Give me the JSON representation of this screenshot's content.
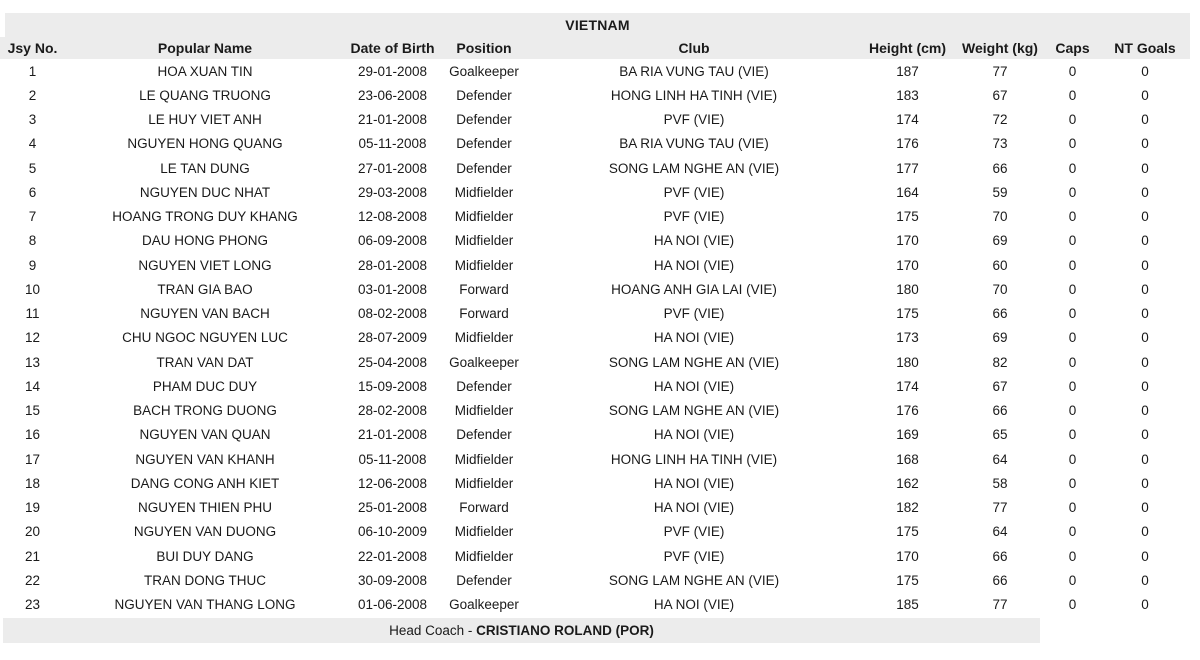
{
  "title": "VIETNAM",
  "table": {
    "columns": [
      "Jsy No.",
      "Popular Name",
      "Date of Birth",
      "Position",
      "Club",
      "Height (cm)",
      "Weight (kg)",
      "Caps",
      "NT Goals"
    ],
    "rows": [
      [
        "1",
        "HOA XUAN TIN",
        "29-01-2008",
        "Goalkeeper",
        "BA RIA VUNG TAU (VIE)",
        "187",
        "77",
        "0",
        "0"
      ],
      [
        "2",
        "LE QUANG TRUONG",
        "23-06-2008",
        "Defender",
        "HONG LINH HA TINH (VIE)",
        "183",
        "67",
        "0",
        "0"
      ],
      [
        "3",
        "LE HUY VIET ANH",
        "21-01-2008",
        "Defender",
        "PVF (VIE)",
        "174",
        "72",
        "0",
        "0"
      ],
      [
        "4",
        "NGUYEN HONG QUANG",
        "05-11-2008",
        "Defender",
        "BA RIA VUNG TAU (VIE)",
        "176",
        "73",
        "0",
        "0"
      ],
      [
        "5",
        "LE TAN DUNG",
        "27-01-2008",
        "Defender",
        "SONG LAM NGHE AN (VIE)",
        "177",
        "66",
        "0",
        "0"
      ],
      [
        "6",
        "NGUYEN DUC NHAT",
        "29-03-2008",
        "Midfielder",
        "PVF (VIE)",
        "164",
        "59",
        "0",
        "0"
      ],
      [
        "7",
        "HOANG TRONG DUY KHANG",
        "12-08-2008",
        "Midfielder",
        "PVF (VIE)",
        "175",
        "70",
        "0",
        "0"
      ],
      [
        "8",
        "DAU HONG PHONG",
        "06-09-2008",
        "Midfielder",
        "HA NOI (VIE)",
        "170",
        "69",
        "0",
        "0"
      ],
      [
        "9",
        "NGUYEN VIET LONG",
        "28-01-2008",
        "Midfielder",
        "HA NOI (VIE)",
        "170",
        "60",
        "0",
        "0"
      ],
      [
        "10",
        "TRAN GIA BAO",
        "03-01-2008",
        "Forward",
        "HOANG ANH GIA LAI (VIE)",
        "180",
        "70",
        "0",
        "0"
      ],
      [
        "11",
        "NGUYEN VAN BACH",
        "08-02-2008",
        "Forward",
        "PVF (VIE)",
        "175",
        "66",
        "0",
        "0"
      ],
      [
        "12",
        "CHU NGOC NGUYEN LUC",
        "28-07-2009",
        "Midfielder",
        "HA NOI (VIE)",
        "173",
        "69",
        "0",
        "0"
      ],
      [
        "13",
        "TRAN VAN DAT",
        "25-04-2008",
        "Goalkeeper",
        "SONG LAM NGHE AN (VIE)",
        "180",
        "82",
        "0",
        "0"
      ],
      [
        "14",
        "PHAM DUC DUY",
        "15-09-2008",
        "Defender",
        "HA NOI (VIE)",
        "174",
        "67",
        "0",
        "0"
      ],
      [
        "15",
        "BACH TRONG DUONG",
        "28-02-2008",
        "Midfielder",
        "SONG LAM NGHE AN (VIE)",
        "176",
        "66",
        "0",
        "0"
      ],
      [
        "16",
        "NGUYEN VAN QUAN",
        "21-01-2008",
        "Defender",
        "HA NOI (VIE)",
        "169",
        "65",
        "0",
        "0"
      ],
      [
        "17",
        "NGUYEN VAN KHANH",
        "05-11-2008",
        "Midfielder",
        "HONG LINH HA TINH (VIE)",
        "168",
        "64",
        "0",
        "0"
      ],
      [
        "18",
        "DANG CONG ANH KIET",
        "12-06-2008",
        "Midfielder",
        "HA NOI (VIE)",
        "162",
        "58",
        "0",
        "0"
      ],
      [
        "19",
        "NGUYEN THIEN PHU",
        "25-01-2008",
        "Forward",
        "HA NOI (VIE)",
        "182",
        "77",
        "0",
        "0"
      ],
      [
        "20",
        "NGUYEN VAN DUONG",
        "06-10-2009",
        "Midfielder",
        "PVF (VIE)",
        "175",
        "64",
        "0",
        "0"
      ],
      [
        "21",
        "BUI DUY DANG",
        "22-01-2008",
        "Midfielder",
        "PVF (VIE)",
        "170",
        "66",
        "0",
        "0"
      ],
      [
        "22",
        "TRAN DONG THUC",
        "30-09-2008",
        "Defender",
        "SONG LAM NGHE AN (VIE)",
        "175",
        "66",
        "0",
        "0"
      ],
      [
        "23",
        "NGUYEN VAN THANG LONG",
        "01-06-2008",
        "Goalkeeper",
        "HA NOI (VIE)",
        "185",
        "77",
        "0",
        "0"
      ]
    ]
  },
  "footer": {
    "label": "Head Coach - ",
    "head_coach": "CRISTIANO ROLAND (POR)"
  },
  "colors": {
    "band_bg": "#ececec",
    "text": "#1a1a1a"
  }
}
